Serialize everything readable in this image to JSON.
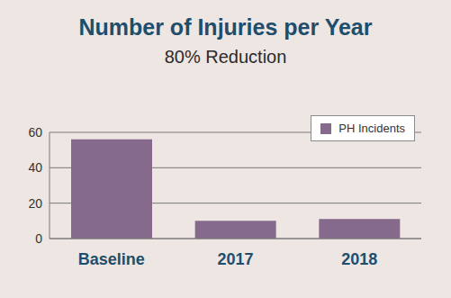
{
  "chart_data": {
    "type": "bar",
    "title": "Number of Injuries per Year",
    "subtitle": "80% Reduction",
    "categories": [
      "Baseline",
      "2017",
      "2018"
    ],
    "series": [
      {
        "name": "PH Incidents",
        "color": "#866a8c",
        "values": [
          56,
          10,
          11
        ]
      }
    ],
    "ylim": [
      0,
      60
    ],
    "yticks": [
      0,
      20,
      40,
      60
    ],
    "grid": true,
    "legend": "upper right"
  }
}
